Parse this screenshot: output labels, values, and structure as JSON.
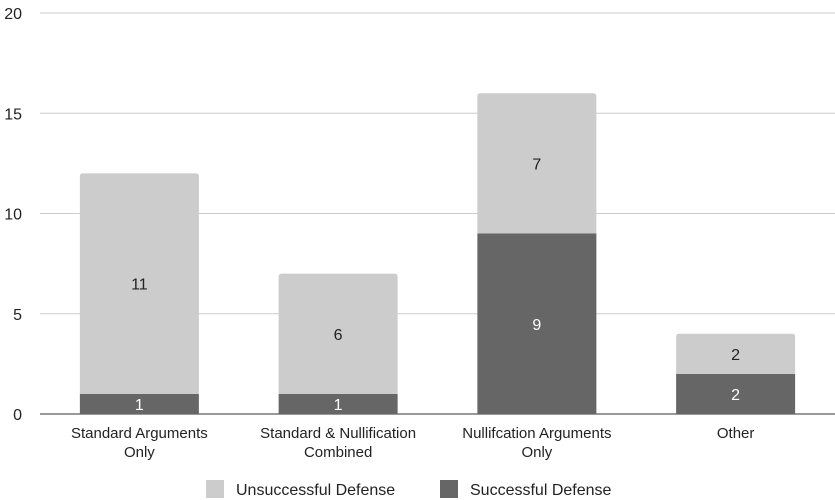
{
  "chart_data": {
    "type": "bar",
    "stacked": true,
    "categories": [
      [
        "Standard Arguments",
        "Only"
      ],
      [
        "Standard & Nullification",
        "Combined"
      ],
      [
        "Nullifcation Arguments",
        "Only"
      ],
      [
        "Other"
      ]
    ],
    "series": [
      {
        "name": "Successful Defense",
        "values": [
          1,
          1,
          9,
          2
        ],
        "color": "#666666",
        "label_color": "#ffffff"
      },
      {
        "name": "Unsuccessful Defense",
        "values": [
          11,
          6,
          7,
          2
        ],
        "color": "#cccccc",
        "label_color": "#222222"
      }
    ],
    "legend_order": [
      "Unsuccessful Defense",
      "Successful Defense"
    ],
    "legend_position": "bottom",
    "ylim": [
      0,
      20
    ],
    "yticks": [
      0,
      5,
      10,
      15,
      20
    ],
    "grid": true,
    "title": "",
    "xlabel": "",
    "ylabel": ""
  }
}
